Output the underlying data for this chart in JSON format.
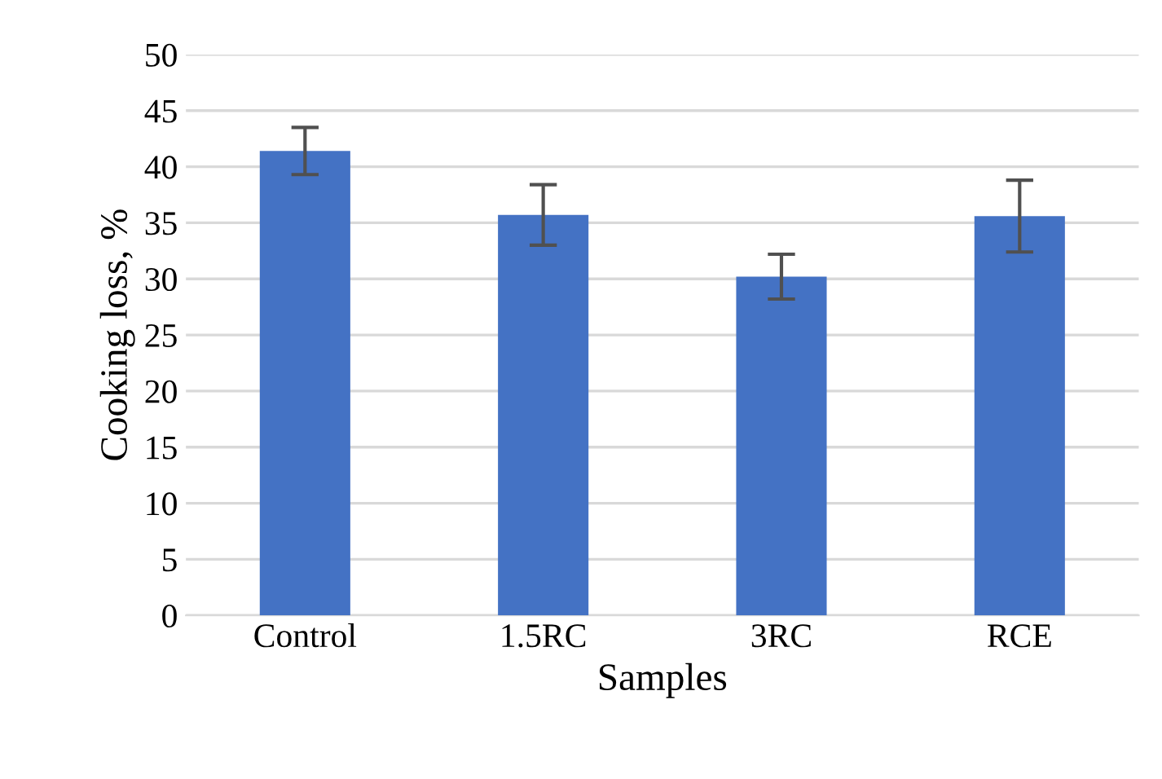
{
  "chart_data": {
    "type": "bar",
    "xlabel": "Samples",
    "ylabel": "Cooking loss, %",
    "categories": [
      "Control",
      "1.5RC",
      "3RC",
      "RCE"
    ],
    "values": [
      41.4,
      35.7,
      30.2,
      35.6
    ],
    "errors": [
      2.1,
      2.7,
      2.0,
      3.2
    ],
    "color": "#4472c4",
    "ylim": [
      0,
      50
    ],
    "yticks": [
      0,
      5,
      10,
      15,
      20,
      25,
      30,
      35,
      40,
      45,
      50
    ],
    "grid": "y"
  }
}
